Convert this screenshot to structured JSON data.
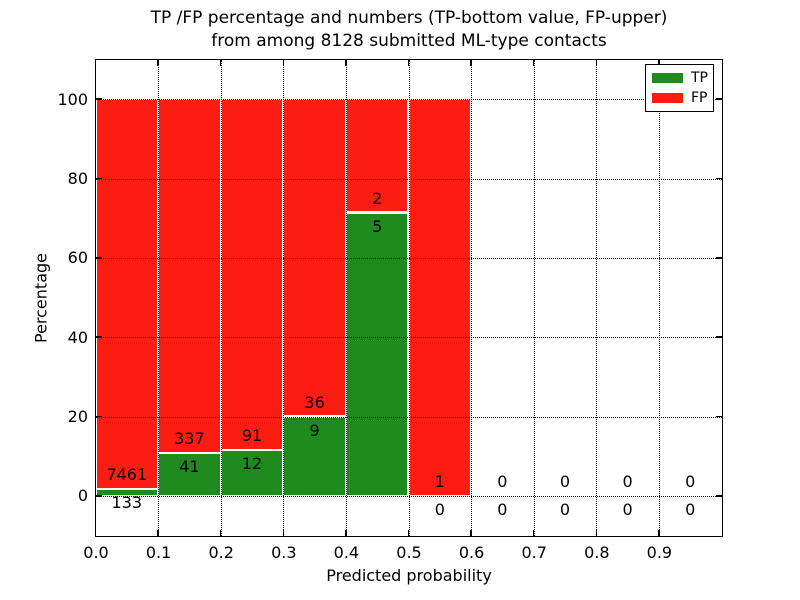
{
  "title": {
    "line1": "TP /FP percentage and numbers (TP-bottom value, FP-upper)",
    "line2": "from among 8128 submitted ML-type contacts"
  },
  "legend": [
    {
      "label": "TP",
      "color": "#1f8b1f"
    },
    {
      "label": "FP",
      "color": "#fb1d12"
    }
  ],
  "chart_data": {
    "type": "bar",
    "stacked": true,
    "normalized": "each non-empty bin stacks to 100%",
    "title": "TP /FP percentage and numbers (TP-bottom value, FP-upper) from among 8128 submitted ML-type contacts",
    "xlabel": "Predicted probability",
    "ylabel": "Percentage",
    "xlim": [
      0.0,
      1.0
    ],
    "ylim": [
      -10,
      110
    ],
    "x_tick_labels": [
      "0.0",
      "0.1",
      "0.2",
      "0.3",
      "0.4",
      "0.5",
      "0.6",
      "0.7",
      "0.8",
      "0.9"
    ],
    "y_tick_values": [
      0,
      20,
      40,
      60,
      80,
      100
    ],
    "bin_edges": [
      0.0,
      0.1,
      0.2,
      0.3,
      0.4,
      0.5,
      0.6,
      0.7,
      0.8,
      0.9,
      1.0
    ],
    "grid": "dotted black, both axes, drawn over bars",
    "legend_position": "upper right",
    "bar_edge_color": "#ffffff",
    "series": [
      {
        "name": "TP",
        "color": "#1f8b1f",
        "counts": [
          133,
          41,
          12,
          9,
          5,
          0,
          0,
          0,
          0,
          0
        ]
      },
      {
        "name": "FP",
        "color": "#fb1d12",
        "counts": [
          7461,
          337,
          91,
          36,
          2,
          1,
          0,
          0,
          0,
          0
        ]
      }
    ],
    "total_contacts": 8128,
    "label_rule": "FP count printed just above the TP/FP boundary of each bin, TP count just below it"
  }
}
